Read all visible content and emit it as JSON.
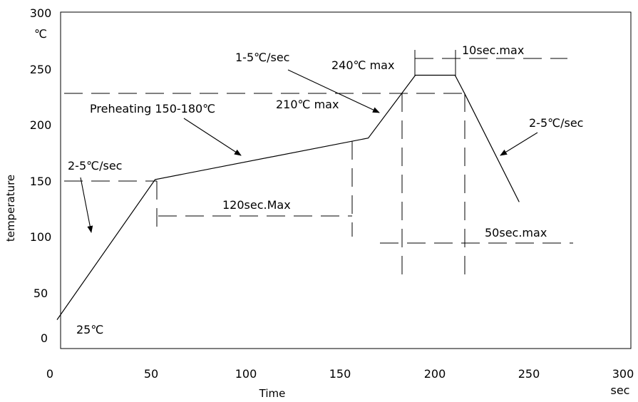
{
  "chart_data": {
    "type": "line",
    "title": "",
    "xlabel": "Time",
    "ylabel": "temperature",
    "xunit": "sec",
    "yunit": "℃",
    "xlim": [
      0,
      300
    ],
    "ylim": [
      0,
      300
    ],
    "xticks": [
      "0",
      "50",
      "100",
      "150",
      "200",
      "250",
      "300"
    ],
    "yticks": [
      "0",
      "50",
      "100",
      "150",
      "200",
      "250",
      "300"
    ],
    "grid": false,
    "series": [
      {
        "x": [
          0,
          52,
          165,
          190,
          211,
          216,
          245
        ],
        "y": [
          25,
          150,
          187,
          243,
          243,
          227,
          130
        ]
      }
    ],
    "reference_lines": [
      {
        "orientation": "horizontal",
        "value": 227
      },
      {
        "orientation": "horizontal",
        "value": 150
      },
      {
        "orientation": "vertical",
        "value": 52
      },
      {
        "orientation": "vertical",
        "value": 165
      },
      {
        "orientation": "vertical",
        "value": 180
      },
      {
        "orientation": "vertical",
        "value": 216
      }
    ],
    "annotations": {
      "start_temp": "25℃",
      "ramp_up_rate": "2-5℃/sec",
      "preheating": "Preheating 150-180℃",
      "preheat_time": "120sec.Max",
      "ramp_to_peak_rate": "1-5℃/sec",
      "reflow_temp": "210℃ max",
      "peak_temp": "240℃ max",
      "peak_time": "10sec.max",
      "cool_down_rate": "2-5℃/sec",
      "reflow_time": "50sec.max"
    }
  }
}
